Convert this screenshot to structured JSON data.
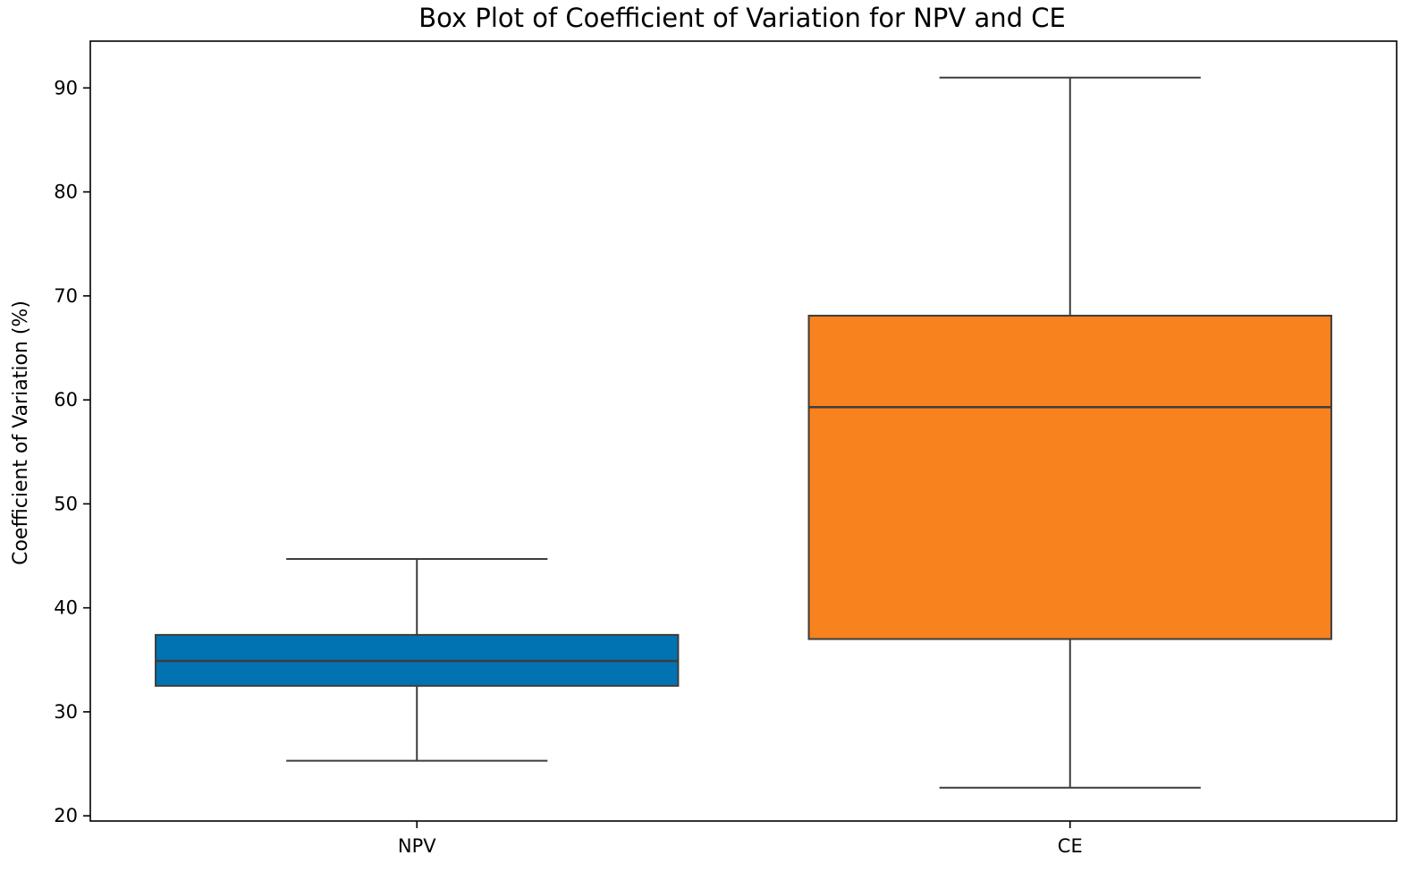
{
  "chart_data": {
    "type": "boxplot",
    "title": "Box Plot of Coefficient of Variation for NPV and CE",
    "xlabel": "",
    "ylabel": "Coefficient of Variation (%)",
    "categories": [
      "NPV",
      "CE"
    ],
    "ylim": [
      19.5,
      94.5
    ],
    "yticks": [
      20,
      30,
      40,
      50,
      60,
      70,
      80,
      90
    ],
    "grid": false,
    "boxes": [
      {
        "category": "NPV",
        "whisker_low": 25.3,
        "q1": 32.5,
        "median": 34.9,
        "q3": 37.4,
        "whisker_high": 44.7,
        "color": "#0173b2"
      },
      {
        "category": "CE",
        "whisker_low": 22.7,
        "q1": 37.0,
        "median": 59.3,
        "q3": 68.1,
        "whisker_high": 91.0,
        "color": "#f8821d"
      }
    ],
    "line_color": "#3d3d3d"
  }
}
